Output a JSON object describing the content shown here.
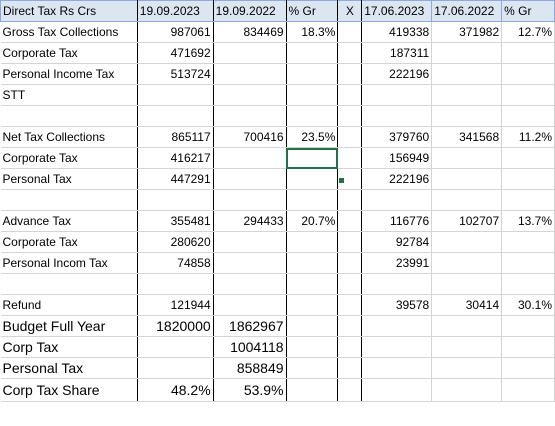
{
  "sheet": {
    "rows": [
      [
        "Direct Tax Rs Crs",
        "19.09.2023",
        "19.09.2022",
        "% Gr",
        "X",
        "17.06.2023",
        "17.06.2022",
        "% Gr"
      ],
      [
        "Gross Tax Collections",
        "987061",
        "834469",
        "18.3%",
        "",
        "419338",
        "371982",
        "12.7%"
      ],
      [
        "Corporate Tax",
        "471692",
        "",
        "",
        "",
        "187311",
        "",
        ""
      ],
      [
        "Personal Income Tax",
        "513724",
        "",
        "",
        "",
        "222196",
        "",
        ""
      ],
      [
        "STT",
        "",
        "",
        "",
        "",
        "",
        "",
        ""
      ],
      [
        "",
        "",
        "",
        "",
        "",
        "",
        "",
        ""
      ],
      [
        "Net Tax Collections",
        "865117",
        "700416",
        "23.5%",
        "",
        "379760",
        "341568",
        "11.2%"
      ],
      [
        "Corporate Tax",
        "416217",
        "",
        "",
        "",
        "156949",
        "",
        ""
      ],
      [
        "Personal Tax",
        "447291",
        "",
        "",
        "",
        "222196",
        "",
        ""
      ],
      [
        "",
        "",
        "",
        "",
        "",
        "",
        "",
        ""
      ],
      [
        "Advance Tax",
        "355481",
        "294433",
        "20.7%",
        "",
        "116776",
        "102707",
        "13.7%"
      ],
      [
        "Corporate Tax",
        "280620",
        "",
        "",
        "",
        "92784",
        "",
        ""
      ],
      [
        "Personal Incom Tax",
        "74858",
        "",
        "",
        "",
        "23991",
        "",
        ""
      ],
      [
        "",
        "",
        "",
        "",
        "",
        "",
        "",
        ""
      ],
      [
        "Refund",
        "121944",
        "",
        "",
        "",
        "39578",
        "30414",
        "30.1%"
      ],
      [
        "Budget Full Year",
        "1820000",
        "1862967",
        "",
        "",
        "",
        "",
        ""
      ],
      [
        "Corp Tax",
        "",
        "1004118",
        "",
        "",
        "",
        "",
        ""
      ],
      [
        "Personal Tax",
        "",
        "858849",
        "",
        "",
        "",
        "",
        ""
      ],
      [
        "Corp Tax Share",
        "48.2%",
        "53.9%",
        "",
        "",
        "",
        "",
        ""
      ]
    ]
  }
}
